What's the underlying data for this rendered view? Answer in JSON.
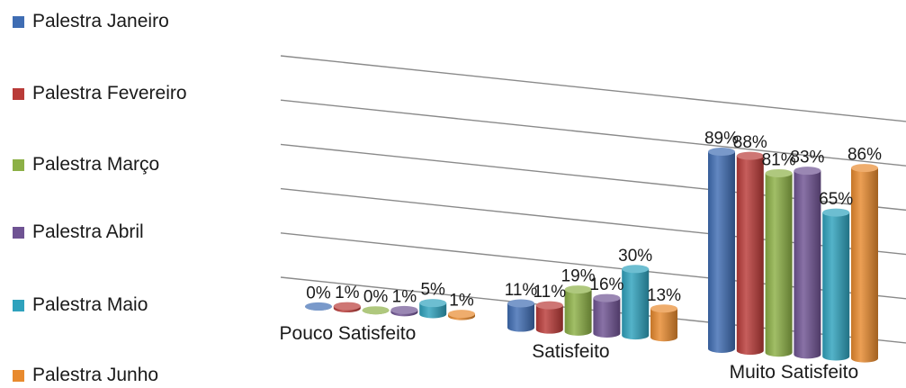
{
  "chart_data": {
    "type": "bar",
    "categories": [
      "Pouco Satisfeito",
      "Satisfeito",
      "Muito Satisfeito"
    ],
    "series": [
      {
        "name": "Palestra Janeiro",
        "color": "#3f6db3",
        "values": [
          0,
          11,
          89
        ],
        "labels": [
          "0%",
          "11%",
          "89%"
        ]
      },
      {
        "name": "Palestra Fevereiro",
        "color": "#b93b38",
        "values": [
          1,
          11,
          88
        ],
        "labels": [
          "1%",
          "11%",
          "88%"
        ]
      },
      {
        "name": "Palestra Março",
        "color": "#8cb046",
        "values": [
          0,
          19,
          81
        ],
        "labels": [
          "0%",
          "19%",
          "81%"
        ]
      },
      {
        "name": "Palestra Abril",
        "color": "#6f5393",
        "values": [
          1,
          16,
          83
        ],
        "labels": [
          "1%",
          "16%",
          "83%"
        ]
      },
      {
        "name": "Palestra Maio",
        "color": "#2fa2bd",
        "values": [
          5,
          30,
          65
        ],
        "labels": [
          "5%",
          "30%",
          "65%"
        ]
      },
      {
        "name": "Palestra Junho",
        "color": "#e88a2e",
        "values": [
          1,
          13,
          86
        ],
        "labels": [
          "1%",
          "13%",
          "86%"
        ]
      }
    ],
    "ylim": [
      0,
      100
    ],
    "grid": true,
    "legend": "left"
  }
}
